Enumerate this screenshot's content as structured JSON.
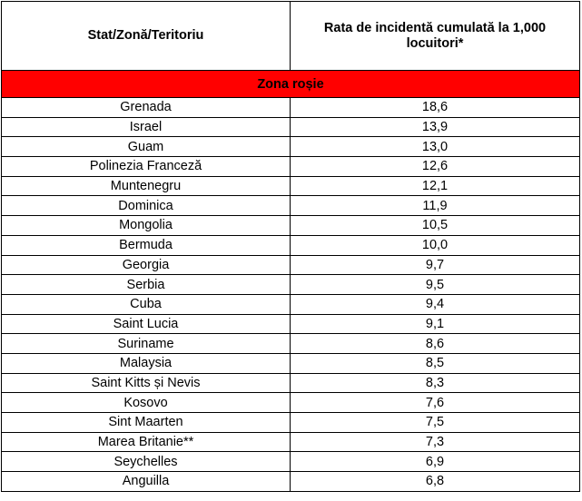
{
  "table": {
    "headers": {
      "country": "Stat/Zonă/Teritoriu",
      "rate": "Rata de incidentă cumulată la 1,000 locuitori*"
    },
    "zone_label": "Zona roșie",
    "zone_color": "#ff0000",
    "rows": [
      {
        "country": "Grenada",
        "rate": "18,6"
      },
      {
        "country": "Israel",
        "rate": "13,9"
      },
      {
        "country": "Guam",
        "rate": "13,0"
      },
      {
        "country": "Polinezia Franceză",
        "rate": "12,6"
      },
      {
        "country": "Muntenegru",
        "rate": "12,1"
      },
      {
        "country": "Dominica",
        "rate": "11,9"
      },
      {
        "country": "Mongolia",
        "rate": "10,5"
      },
      {
        "country": "Bermuda",
        "rate": "10,0"
      },
      {
        "country": "Georgia",
        "rate": "9,7"
      },
      {
        "country": "Serbia",
        "rate": "9,5"
      },
      {
        "country": "Cuba",
        "rate": "9,4"
      },
      {
        "country": "Saint Lucia",
        "rate": "9,1"
      },
      {
        "country": "Suriname",
        "rate": "8,6"
      },
      {
        "country": "Malaysia",
        "rate": "8,5"
      },
      {
        "country": "Saint Kitts și Nevis",
        "rate": "8,3"
      },
      {
        "country": "Kosovo",
        "rate": "7,6"
      },
      {
        "country": "Sint Maarten",
        "rate": "7,5"
      },
      {
        "country": "Marea Britanie**",
        "rate": "7,3"
      },
      {
        "country": "Seychelles",
        "rate": "6,9"
      },
      {
        "country": "Anguilla",
        "rate": "6,8"
      }
    ]
  }
}
